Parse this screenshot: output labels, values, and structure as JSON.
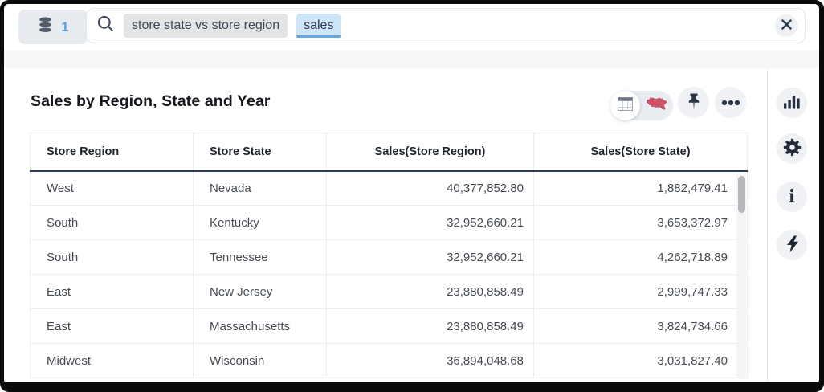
{
  "topbar": {
    "datasource_badge": {
      "count": "1"
    },
    "search": {
      "tokens": [
        {
          "text": "store state vs store region",
          "state": "default"
        },
        {
          "text": "sales",
          "state": "active"
        }
      ]
    }
  },
  "answer": {
    "title": "Sales by Region, State and Year"
  },
  "table": {
    "columns": [
      "Store Region",
      "Store State",
      "Sales(Store Region)",
      "Sales(Store State)"
    ],
    "rows": [
      [
        "West",
        "Nevada",
        "40,377,852.80",
        "1,882,479.41"
      ],
      [
        "South",
        "Kentucky",
        "32,952,660.21",
        "3,653,372.97"
      ],
      [
        "South",
        "Tennessee",
        "32,952,660.21",
        "4,262,718.89"
      ],
      [
        "East",
        "New Jersey",
        "23,880,858.49",
        "2,999,747.33"
      ],
      [
        "East",
        "Massachusetts",
        "23,880,858.49",
        "3,824,734.66"
      ],
      [
        "Midwest",
        "Wisconsin",
        "36,894,048.68",
        "3,031,827.40"
      ]
    ]
  },
  "icons": {
    "datasource": "database-icon",
    "search": "search-icon",
    "clear": "close-icon",
    "view_table": "table-view-icon",
    "view_map": "usa-map-icon",
    "pin": "pin-icon",
    "more": "ellipsis-icon",
    "sidebar": [
      "bar-chart-icon",
      "gear-icon",
      "info-icon",
      "lightning-icon"
    ],
    "info_glyph": "i"
  },
  "colors": {
    "accent_blue": "#5a9fe0",
    "active_token_bg": "#cde5f8",
    "active_token_underline": "#65a8e1",
    "token_bg": "#e3e4e6",
    "map_red": "#ce5367",
    "header_rule": "#2d3c52",
    "band_gray": "#f4f6f8",
    "button_gray": "#eff1f4",
    "frame_black": "#0a0a0a"
  }
}
